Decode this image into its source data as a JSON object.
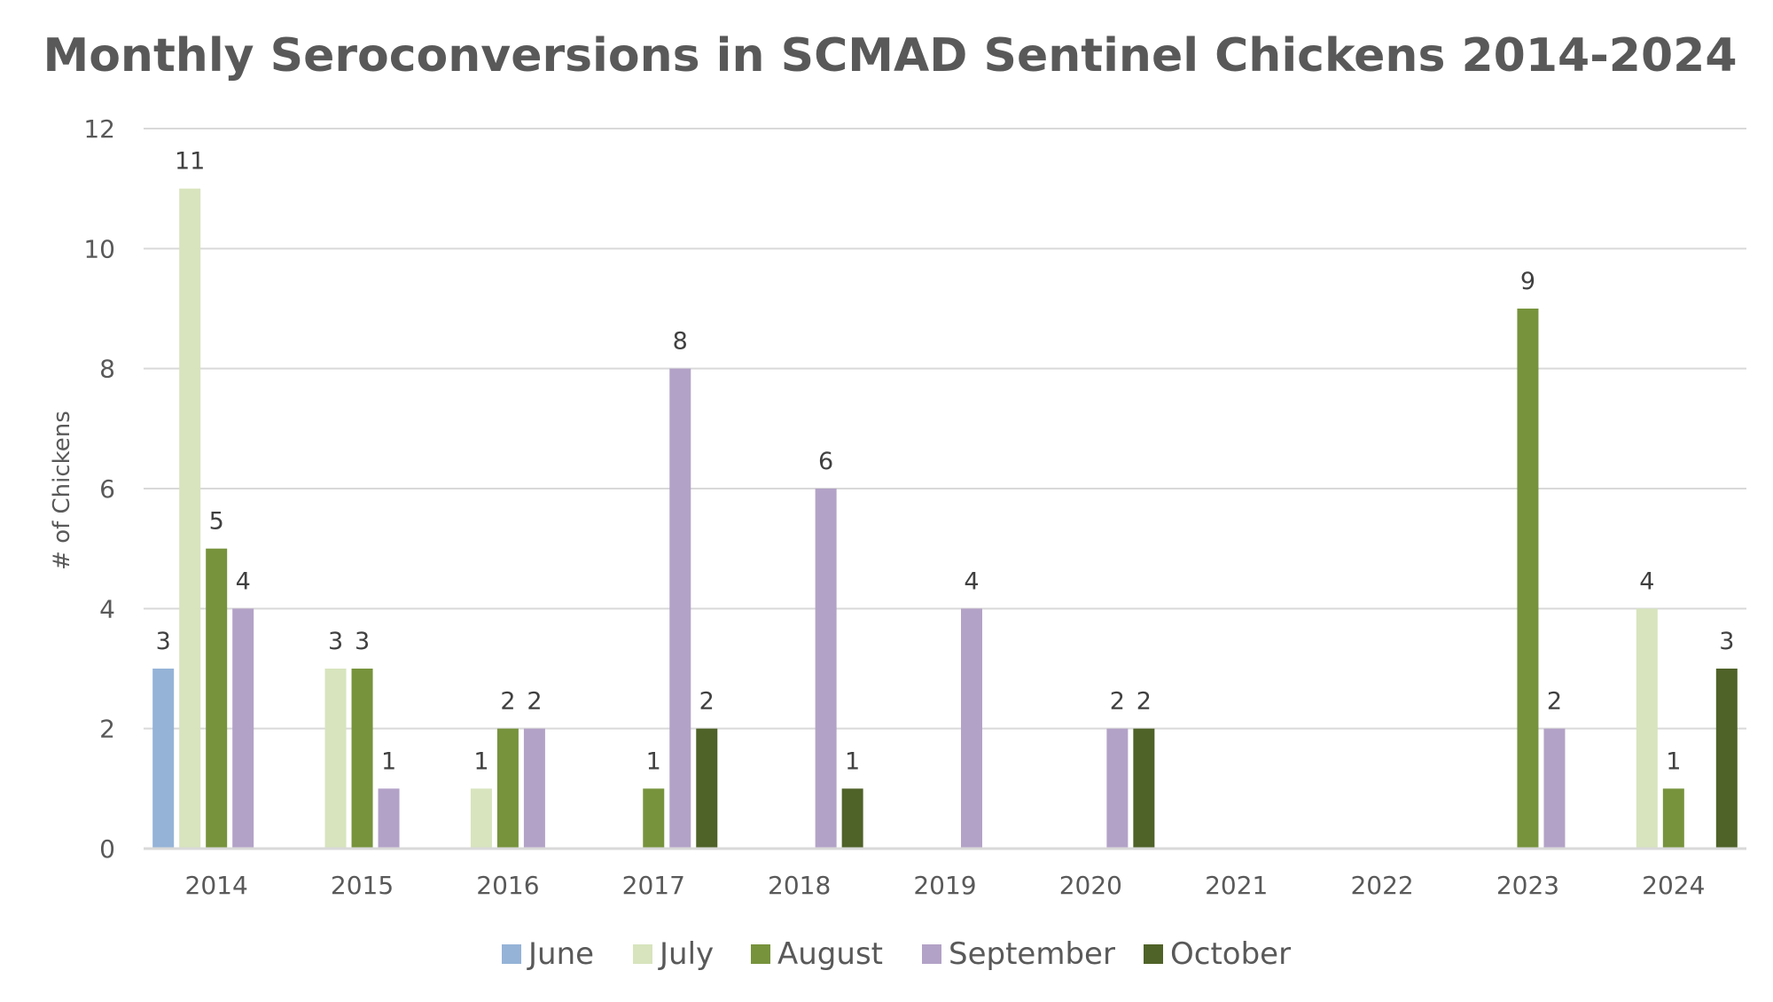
{
  "chart_data": {
    "type": "bar",
    "title": "Monthly Seroconversions in SCMAD Sentinel Chickens 2014-2024",
    "xlabel": "",
    "ylabel": "# of Chickens",
    "ylim": [
      0,
      12
    ],
    "yticks": [
      "0",
      "2",
      "4",
      "6",
      "8",
      "10",
      "12"
    ],
    "grid": true,
    "legend": "bottom",
    "categories": [
      "2014",
      "2015",
      "2016",
      "2017",
      "2018",
      "2019",
      "2020",
      "2021",
      "2022",
      "2023",
      "2024"
    ],
    "series": [
      {
        "name": "June",
        "color": "#95B3D7",
        "values": [
          3,
          0,
          0,
          0,
          0,
          0,
          0,
          0,
          0,
          0,
          0
        ]
      },
      {
        "name": "July",
        "color": "#D7E4BD",
        "values": [
          11,
          3,
          1,
          0,
          0,
          0,
          0,
          0,
          0,
          0,
          4
        ]
      },
      {
        "name": "August",
        "color": "#77933C",
        "values": [
          5,
          3,
          2,
          1,
          0,
          0,
          0,
          0,
          0,
          9,
          1
        ]
      },
      {
        "name": "September",
        "color": "#B3A2C7",
        "values": [
          4,
          1,
          2,
          8,
          6,
          4,
          2,
          0,
          0,
          2,
          0
        ]
      },
      {
        "name": "October",
        "color": "#4F6228",
        "values": [
          0,
          0,
          0,
          2,
          1,
          0,
          2,
          0,
          0,
          0,
          3
        ]
      }
    ]
  }
}
